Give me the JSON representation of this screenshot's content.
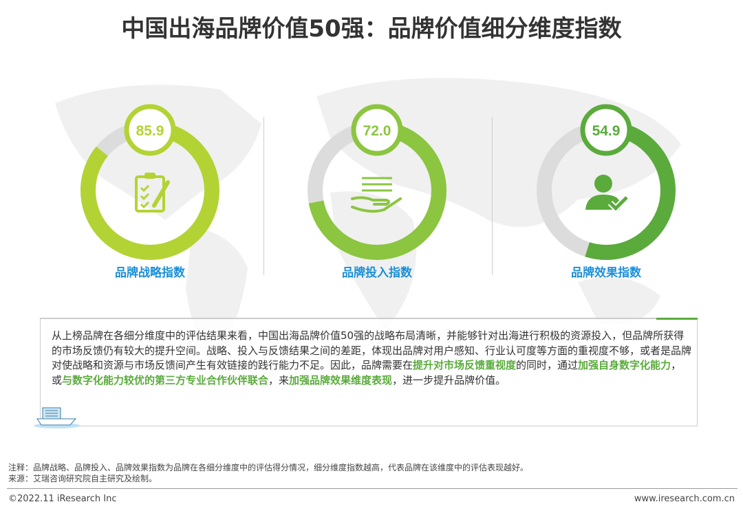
{
  "title": "中国出海品牌价值50强：品牌价值细分维度指数",
  "chart_data": {
    "type": "donut",
    "ylim": [
      0,
      100
    ],
    "items": [
      {
        "label": "品牌战略指数",
        "value": 85.9,
        "value_text": "85.9",
        "color": "#b3d334",
        "icon": "clipboard-check-icon"
      },
      {
        "label": "品牌投入指数",
        "value": 72.0,
        "value_text": "72.0",
        "color": "#8cc540",
        "icon": "hand-offer-icon"
      },
      {
        "label": "品牌效果指数",
        "value": 54.9,
        "value_text": "54.9",
        "color": "#5aab3c",
        "icon": "user-check-icon"
      }
    ],
    "track_color": "#dcdcdc"
  },
  "paragraph": [
    {
      "t": "从上榜品牌在各细分维度中的评估结果来看，中国出海品牌价值50强的战略布局清晰，并能够针对出海进行积极的资源投入，但品牌所获得的市场反馈仍有较大的提升空间。战略、投入与反馈结果之间的差距，体现出品牌对用户感知、行业认可度等方面的重视度不够，或者是品牌对使战略和资源与市场反馈间产生有效链接的践行能力不足。因此，品牌需要在",
      "h": false
    },
    {
      "t": "提升对市场反馈重视度",
      "h": true
    },
    {
      "t": "的同时，通过",
      "h": false
    },
    {
      "t": "加强自身数字化能力",
      "h": true
    },
    {
      "t": "，或",
      "h": false
    },
    {
      "t": "与数字化能力较优的第三方专业合作伙伴联合",
      "h": true
    },
    {
      "t": "，来",
      "h": false
    },
    {
      "t": "加强品牌效果维度表现",
      "h": true
    },
    {
      "t": "，进一步提升品牌价值。",
      "h": false
    }
  ],
  "note": "注释：品牌战略、品牌投入、品牌效果指数为品牌在各细分维度中的评估得分情况，细分维度指数越高，代表品牌在该维度中的评估表现越好。",
  "source": "来源：艾瑞咨询研究院自主研究及绘制。",
  "copyright": "©2022.11 iResearch Inc",
  "website": "www.iresearch.com.cn"
}
